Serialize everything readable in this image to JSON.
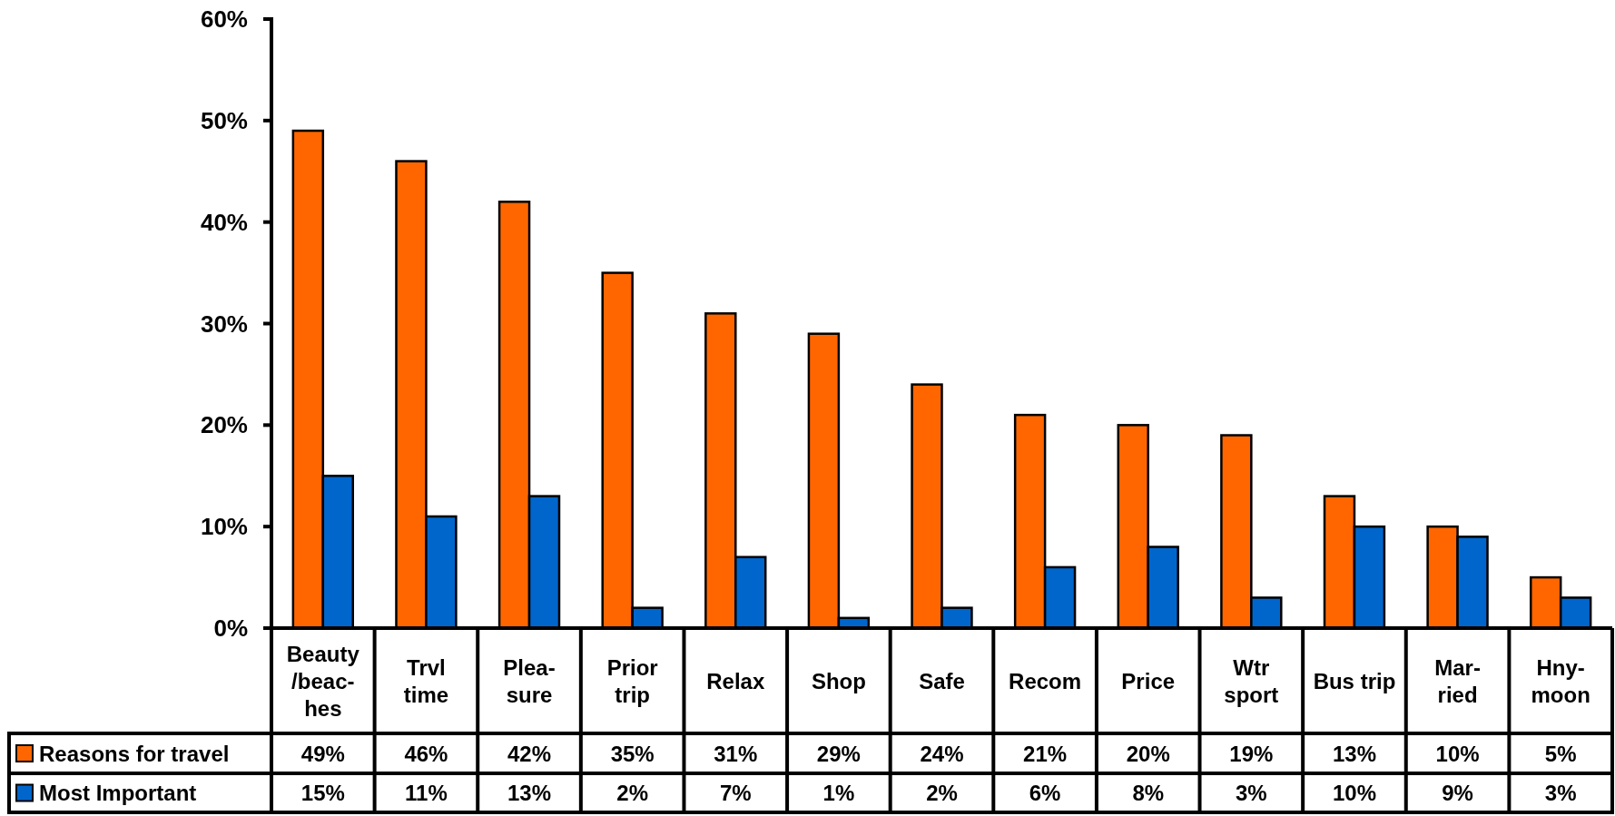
{
  "chart_data": {
    "type": "bar",
    "categories": [
      "Beauty\n/beac-\nhes",
      "Trvl\ntime",
      "Plea-\nsure",
      "Prior\ntrip",
      "Relax",
      "Shop",
      "Safe",
      "Recom",
      "Price",
      "Wtr\nsport",
      "Bus trip",
      "Mar-\nried",
      "Hny-\nmoon"
    ],
    "series": [
      {
        "name": "Reasons for travel",
        "color": "#ff6600",
        "values": [
          49,
          46,
          42,
          35,
          31,
          29,
          24,
          21,
          20,
          19,
          13,
          10,
          5
        ],
        "value_labels": [
          "49%",
          "46%",
          "42%",
          "35%",
          "31%",
          "29%",
          "24%",
          "21%",
          "20%",
          "19%",
          "13%",
          "10%",
          "5%"
        ]
      },
      {
        "name": "Most Important",
        "color": "#0066cc",
        "values": [
          15,
          11,
          13,
          2,
          7,
          1,
          2,
          6,
          8,
          3,
          10,
          9,
          3
        ],
        "value_labels": [
          "15%",
          "11%",
          "13%",
          "2%",
          "7%",
          "1%",
          "2%",
          "6%",
          "8%",
          "3%",
          "10%",
          "9%",
          "3%"
        ]
      }
    ],
    "ylim": [
      0,
      60
    ],
    "yticks": [
      {
        "value": 0,
        "label": "0%"
      },
      {
        "value": 10,
        "label": "10%"
      },
      {
        "value": 20,
        "label": "20%"
      },
      {
        "value": 30,
        "label": "30%"
      },
      {
        "value": 40,
        "label": "40%"
      },
      {
        "value": 50,
        "label": "50%"
      },
      {
        "value": 60,
        "label": "60%"
      }
    ],
    "legend": "bottom"
  }
}
